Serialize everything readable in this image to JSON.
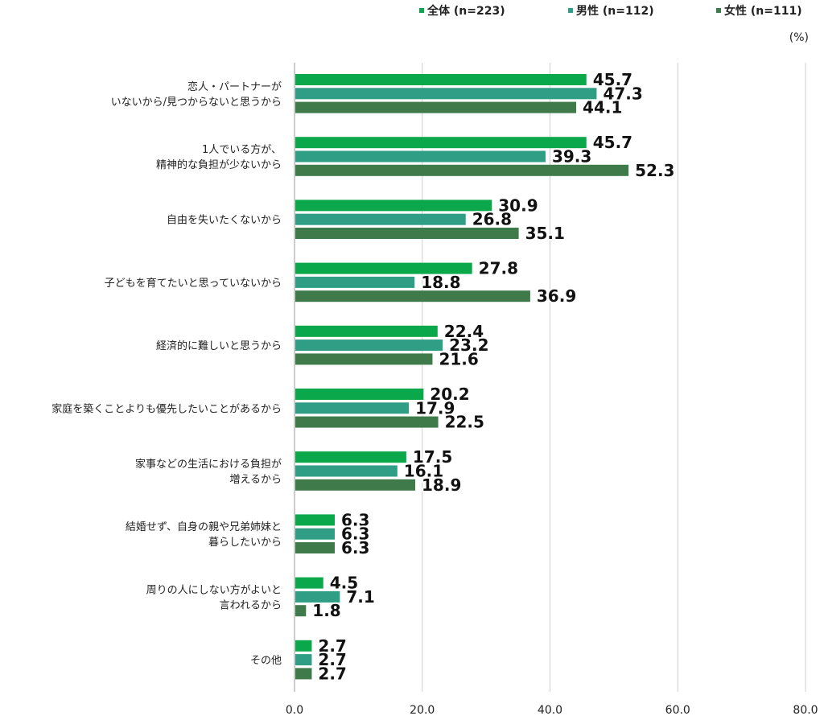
{
  "chart_data": {
    "type": "bar",
    "orientation": "horizontal",
    "unit": "(%)",
    "categories": [
      [
        "恋人・パートナーが",
        "いないから/見つからないと思うから"
      ],
      [
        "1人でいる方が、",
        "精神的な負担が少ないから"
      ],
      [
        "自由を失いたくないから"
      ],
      [
        "子どもを育てたいと思っていないから"
      ],
      [
        "経済的に難しいと思うから"
      ],
      [
        "家庭を築くことよりも優先したいことがあるから"
      ],
      [
        "家事などの生活における負担が",
        "増えるから"
      ],
      [
        "結婚せず、自身の親や兄弟姉妹と",
        "暮らしたいから"
      ],
      [
        "周りの人にしない方がよいと",
        "言われるから"
      ],
      [
        "その他"
      ]
    ],
    "series": [
      {
        "name": "全体 (n=223)",
        "color": "#0aa84a",
        "values": [
          45.7,
          45.7,
          30.9,
          27.8,
          22.4,
          20.2,
          17.5,
          6.3,
          4.5,
          2.7
        ]
      },
      {
        "name": "男性 (n=112)",
        "color": "#2f9e84",
        "values": [
          47.3,
          39.3,
          26.8,
          18.8,
          23.2,
          17.9,
          16.1,
          6.3,
          7.1,
          2.7
        ]
      },
      {
        "name": "女性 (n=111)",
        "color": "#3e7a4a",
        "values": [
          44.1,
          52.3,
          35.1,
          36.9,
          21.6,
          22.5,
          18.9,
          6.3,
          1.8,
          2.7
        ]
      }
    ],
    "x_ticks": [
      "0.0",
      "20.0",
      "40.0",
      "60.0",
      "80.0"
    ],
    "xlim": [
      0,
      80
    ],
    "grid": true,
    "legend_position": "top-right"
  }
}
